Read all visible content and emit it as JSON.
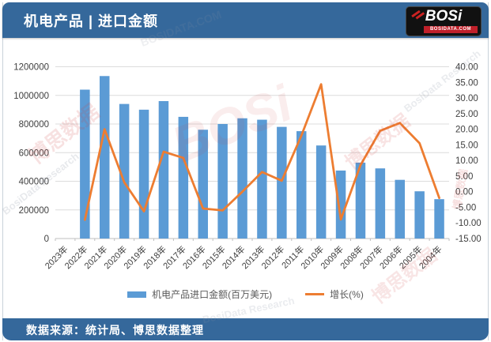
{
  "header": {
    "title": "机电产品 | 进口金额",
    "logo": {
      "name": "BOSi",
      "domain": "BOSIDATA.COM"
    }
  },
  "footer": {
    "source": "数据来源：统计局、博思数据整理"
  },
  "watermark": {
    "texts": [
      "博思数据",
      "BosiData Research",
      "BOSi",
      "BOSIDATA.COM"
    ]
  },
  "colors": {
    "header_blue": "#35689B",
    "bar_blue": "#5B9BD5",
    "line_orange": "#ED7D31"
  },
  "legend": {
    "bar_label": "机电产品进口金额(百万美元)",
    "line_label": "增长(%)"
  },
  "chart_data": {
    "type": "bar",
    "subtype": "bar+line combo, dual axis",
    "title": "机电产品进口金额",
    "categories": [
      "2023年",
      "2022年",
      "2021年",
      "2020年",
      "2019年",
      "2018年",
      "2017年",
      "2016年",
      "2015年",
      "2014年",
      "2013年",
      "2012年",
      "2011年",
      "2010年",
      "2009年",
      "2008年",
      "2007年",
      "2006年",
      "2005年",
      "2004年"
    ],
    "series": [
      {
        "name": "机电产品进口金额(百万美元)",
        "type": "bar",
        "axis": "left",
        "color": "#5B9BD5",
        "values": [
          null,
          1040000,
          1135000,
          940000,
          900000,
          960000,
          850000,
          760000,
          800000,
          840000,
          830000,
          780000,
          750000,
          650000,
          475000,
          530000,
          490000,
          410000,
          330000,
          275000
        ]
      },
      {
        "name": "增长(%)",
        "type": "line",
        "axis": "right",
        "color": "#ED7D31",
        "values": [
          null,
          -9,
          20,
          3,
          -6.3,
          12.8,
          10.8,
          -5.4,
          -6,
          0,
          6.3,
          3.5,
          18,
          34.4,
          -8.9,
          8.5,
          19.5,
          22,
          15.5,
          -2
        ]
      }
    ],
    "left_axis": {
      "min": 0,
      "max": 1200000,
      "step": 200000,
      "ticks": [
        "0",
        "200000",
        "400000",
        "600000",
        "800000",
        "1000000",
        "1200000"
      ]
    },
    "right_axis": {
      "min": -15,
      "max": 40,
      "step": 5,
      "ticks": [
        "-15.00",
        "-10.00",
        "-5.00",
        "0.00",
        "5.00",
        "10.00",
        "15.00",
        "20.00",
        "25.00",
        "30.00",
        "35.00",
        "40.00"
      ]
    },
    "grid": true,
    "legend_position": "bottom"
  }
}
